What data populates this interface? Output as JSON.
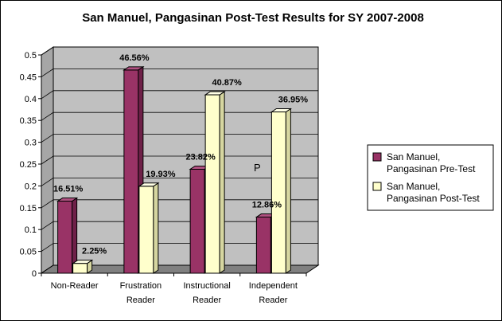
{
  "chart_data": {
    "type": "bar",
    "title": "San Manuel, Pangasinan Post-Test Results for SY 2007-2008",
    "categories": [
      [
        "Non-Reader"
      ],
      [
        "Frustration",
        "Reader"
      ],
      [
        "Instructional",
        "Reader"
      ],
      [
        "Independent",
        "Reader"
      ]
    ],
    "series": [
      {
        "name": "San Manuel, Pangasinan Pre-Test",
        "legend_lines": [
          "San Manuel,",
          "Pangasinan Pre-Test"
        ],
        "values": [
          0.1651,
          0.4656,
          0.2382,
          0.1286
        ],
        "labels": [
          "16.51%",
          "46.56%",
          "23.82%",
          "12.86%"
        ],
        "color": "#993366"
      },
      {
        "name": "San Manuel, Pangasinan Post-Test",
        "legend_lines": [
          "San Manuel,",
          "Pangasinan Post-Test"
        ],
        "values": [
          0.0225,
          0.1993,
          0.4087,
          0.3695
        ],
        "labels": [
          "2.25%",
          "19.93%",
          "40.87%",
          "36.95%"
        ],
        "color": "#ffffcc"
      }
    ],
    "ylim": [
      0,
      0.5
    ],
    "yticks": [
      "0",
      "0.05",
      "0.1",
      "0.15",
      "0.2",
      "0.25",
      "0.3",
      "0.35",
      "0.4",
      "0.45",
      "0.5"
    ],
    "grid": true,
    "legend_position": "right",
    "annotation": "P"
  }
}
